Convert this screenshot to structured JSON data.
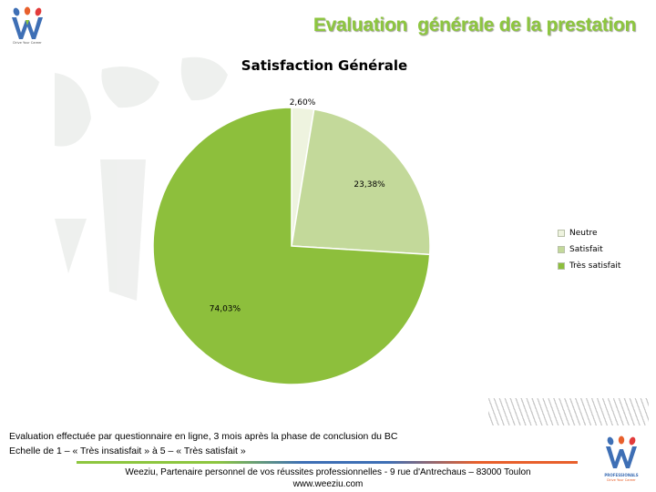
{
  "header": {
    "title": "Evaluation  générale de la prestation",
    "logo_tagline": "Drive Your Career"
  },
  "chart_data": {
    "type": "pie",
    "title": "Satisfaction Générale",
    "categories": [
      "Neutre",
      "Satisfait",
      "Très satisfait"
    ],
    "values": [
      2.6,
      23.38,
      74.03
    ],
    "labels": [
      "2,60%",
      "23,38%",
      "74,03%"
    ],
    "colors": [
      "#eef3df",
      "#c3d99a",
      "#8dbf3c"
    ],
    "legend_position": "right"
  },
  "notes": {
    "line1": "Evaluation effectuée par questionnaire en ligne, 3 mois après la phase de conclusion du BC",
    "line2": "Echelle de 1 – « Très insatisfait » à 5 – « Très satisfait »"
  },
  "footer": {
    "line1": "Weeziu, Partenaire personnel de vos réussites professionnelles - 9 rue d'Antrechaus – 83000 Toulon",
    "line2": "www.weeziu.com"
  },
  "logo_bottom": {
    "tagline_top": "PROFESSIONALS",
    "tagline_bottom": "Drive Your Career"
  },
  "colors": {
    "brand_green": "#8dc63f",
    "brand_blue": "#3e6fb5",
    "brand_orange": "#e8602c",
    "brand_red": "#e23b3b"
  }
}
